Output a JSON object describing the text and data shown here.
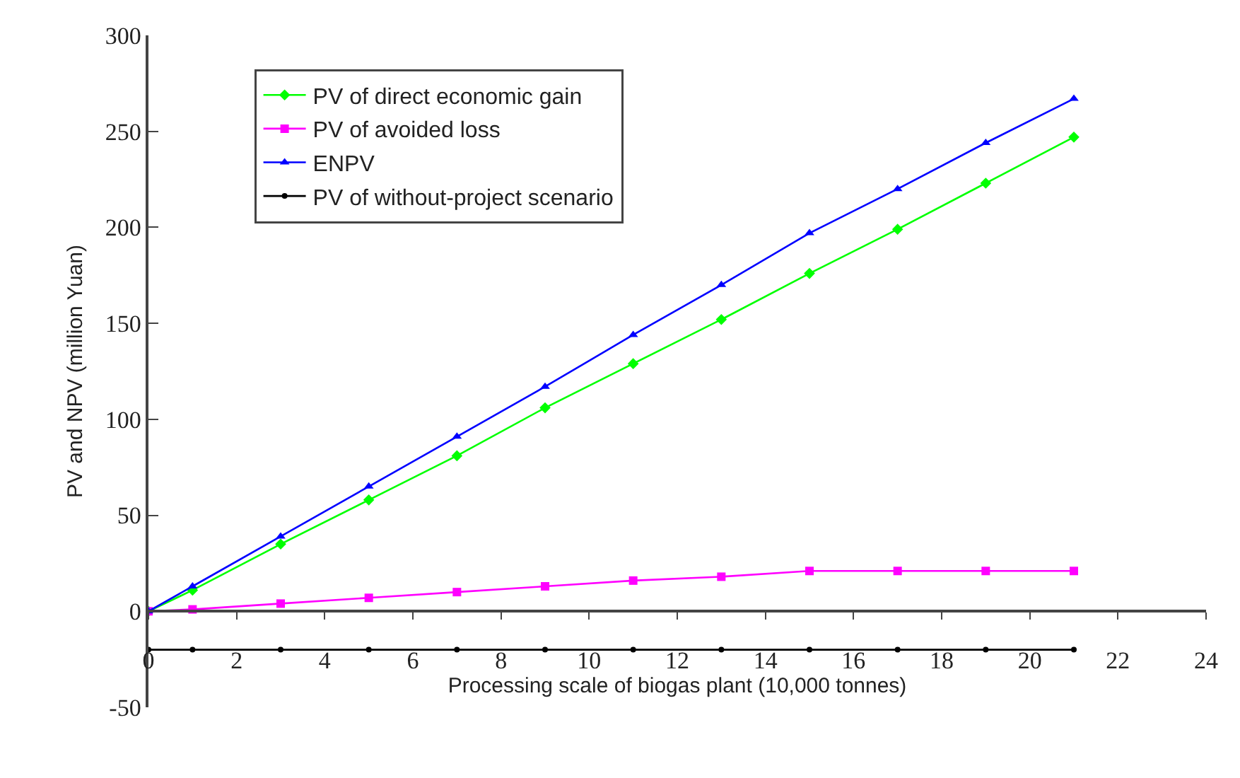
{
  "chart_data": {
    "type": "line",
    "xlabel": "Processing scale of biogas plant (10,000 tonnes)",
    "ylabel": "PV and NPV (million Yuan)",
    "x": [
      0,
      1,
      3,
      5,
      7,
      9,
      11,
      13,
      15,
      17,
      19,
      21
    ],
    "series": [
      {
        "name": "PV of direct economic gain",
        "color": "#00ff00",
        "marker": "diamond",
        "values": [
          0,
          11,
          35,
          58,
          81,
          106,
          129,
          152,
          176,
          199,
          223,
          247
        ]
      },
      {
        "name": "PV of avoided loss",
        "color": "#ff00ff",
        "marker": "square",
        "values": [
          0,
          1,
          4,
          7,
          10,
          13,
          16,
          18,
          21,
          21,
          21,
          21
        ]
      },
      {
        "name": "ENPV",
        "color": "#0000ff",
        "marker": "triangle",
        "values": [
          0,
          13,
          39,
          65,
          91,
          117,
          144,
          170,
          197,
          220,
          244,
          267
        ]
      },
      {
        "name": "PV of without-project scenario",
        "color": "#000000",
        "marker": "circle",
        "values": [
          -20,
          -20,
          -20,
          -20,
          -20,
          -20,
          -20,
          -20,
          -20,
          -20,
          -20,
          -20
        ]
      }
    ],
    "xlim": [
      0,
      24
    ],
    "xticks": [
      0,
      2,
      4,
      6,
      8,
      10,
      12,
      14,
      16,
      18,
      20,
      22,
      24
    ],
    "ylim": [
      -50,
      300
    ],
    "yticks": [
      -50,
      0,
      50,
      100,
      150,
      200,
      250,
      300
    ],
    "grid": false,
    "legend": "top left",
    "line_style": "solid"
  }
}
